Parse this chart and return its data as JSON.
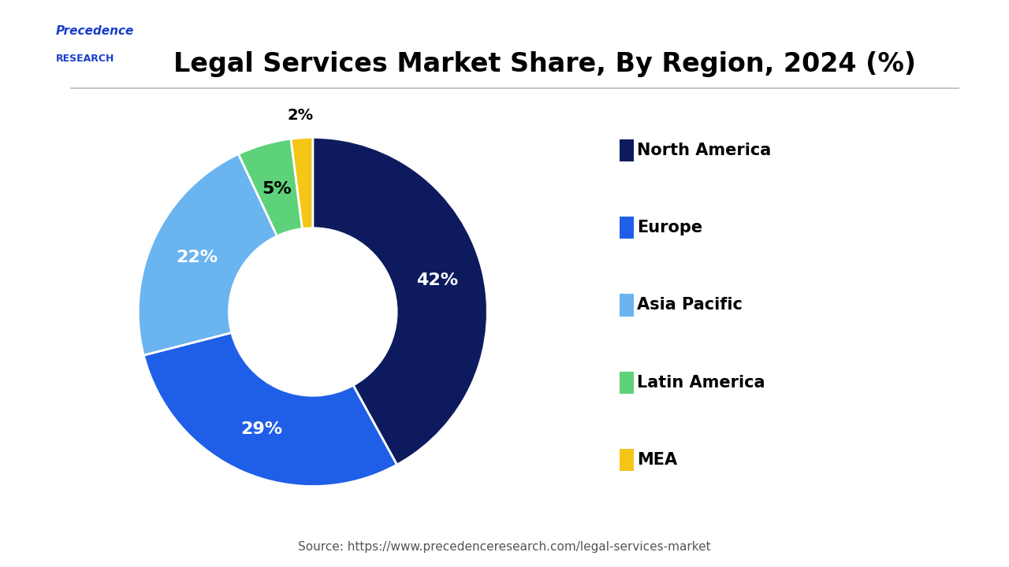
{
  "title": "Legal Services Market Share, By Region, 2024 (%)",
  "slices": [
    42,
    29,
    22,
    5,
    2
  ],
  "labels": [
    "North America",
    "Europe",
    "Asia Pacific",
    "Latin America",
    "MEA"
  ],
  "colors": [
    "#0d1b5e",
    "#1f5fe8",
    "#6ab4f0",
    "#5dd27a",
    "#f5c518"
  ],
  "pct_labels": [
    "42%",
    "29%",
    "22%",
    "5%",
    "2%"
  ],
  "source": "Source: https://www.precedenceresearch.com/legal-services-market",
  "background_color": "#ffffff",
  "title_fontsize": 24,
  "legend_fontsize": 15,
  "pct_fontsize": 16,
  "source_fontsize": 11
}
